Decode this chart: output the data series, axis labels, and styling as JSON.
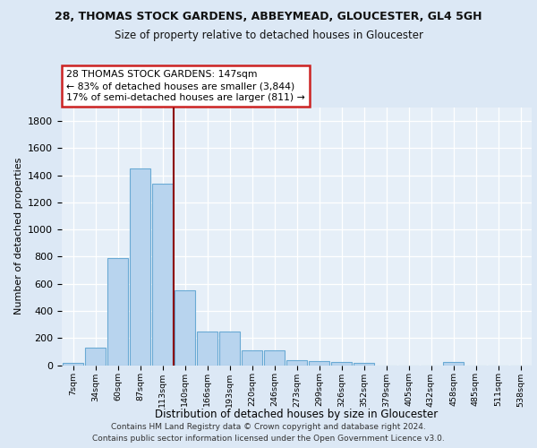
{
  "title1": "28, THOMAS STOCK GARDENS, ABBEYMEAD, GLOUCESTER, GL4 5GH",
  "title2": "Size of property relative to detached houses in Gloucester",
  "xlabel": "Distribution of detached houses by size in Gloucester",
  "ylabel": "Number of detached properties",
  "bin_labels": [
    "7sqm",
    "34sqm",
    "60sqm",
    "87sqm",
    "113sqm",
    "140sqm",
    "166sqm",
    "193sqm",
    "220sqm",
    "246sqm",
    "273sqm",
    "299sqm",
    "326sqm",
    "352sqm",
    "379sqm",
    "405sqm",
    "432sqm",
    "458sqm",
    "485sqm",
    "511sqm",
    "538sqm"
  ],
  "bar_heights": [
    15,
    130,
    790,
    1450,
    1340,
    550,
    245,
    245,
    110,
    110,
    35,
    30,
    20,
    15,
    0,
    0,
    0,
    25,
    0,
    0,
    0
  ],
  "bar_color": "#b8d4ee",
  "bar_edge_color": "#6aaad4",
  "vline_pos": 4.5,
  "vline_color": "#8b0000",
  "annotation_text": "28 THOMAS STOCK GARDENS: 147sqm\n← 83% of detached houses are smaller (3,844)\n17% of semi-detached houses are larger (811) →",
  "annotation_box_fc": "#ffffff",
  "annotation_box_ec": "#cc2222",
  "ylim": [
    0,
    1900
  ],
  "yticks": [
    0,
    200,
    400,
    600,
    800,
    1000,
    1200,
    1400,
    1600,
    1800
  ],
  "bg_color": "#dce8f5",
  "plot_bg_color": "#e6eff8",
  "footer_line1": "Contains HM Land Registry data © Crown copyright and database right 2024.",
  "footer_line2": "Contains public sector information licensed under the Open Government Licence v3.0."
}
